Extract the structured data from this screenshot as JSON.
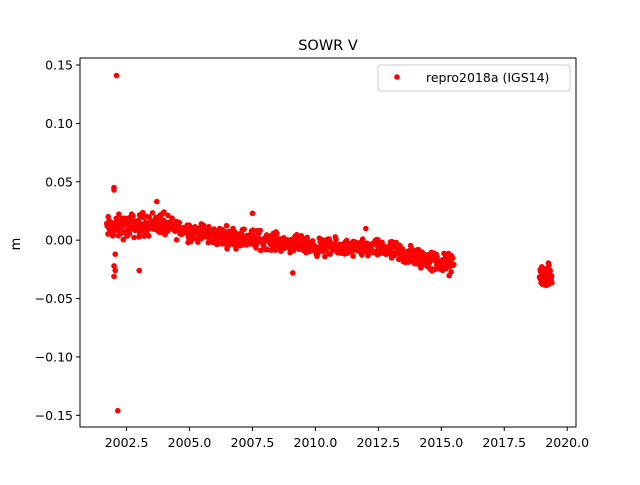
{
  "chart_data": {
    "type": "scatter",
    "title": "SOWR V",
    "xlabel": "",
    "ylabel": "m",
    "xlim": [
      2000.65,
      2020.35
    ],
    "ylim": [
      -0.16,
      0.156
    ],
    "x_ticks": [
      2002.5,
      2005.0,
      2007.5,
      2010.0,
      2012.5,
      2015.0,
      2017.5,
      2020.0
    ],
    "x_tick_labels": [
      "2002.5",
      "2005.0",
      "2007.5",
      "2010.0",
      "2012.5",
      "2015.0",
      "2017.5",
      "2020.0"
    ],
    "y_ticks": [
      0.15,
      0.1,
      0.05,
      0.0,
      -0.05,
      -0.1,
      -0.15
    ],
    "y_tick_labels": [
      "0.15",
      "0.10",
      "0.05",
      "0.00",
      "−0.05",
      "−0.10",
      "−0.15"
    ],
    "grid": false,
    "legend_position": "top-right",
    "series": [
      {
        "name": "repro2018a (IGS14)",
        "color": "#ff0000",
        "marker": "circle",
        "trend_segments": [
          {
            "x_start": 2001.7,
            "x_end": 2003.0,
            "y_start": 0.01,
            "y_end": 0.013,
            "spread": 0.011,
            "per_year": 60
          },
          {
            "x_start": 2003.0,
            "x_end": 2004.0,
            "y_start": 0.013,
            "y_end": 0.015,
            "spread": 0.011,
            "per_year": 60
          },
          {
            "x_start": 2004.0,
            "x_end": 2006.0,
            "y_start": 0.012,
            "y_end": 0.004,
            "spread": 0.009,
            "per_year": 60
          },
          {
            "x_start": 2006.0,
            "x_end": 2008.0,
            "y_start": 0.004,
            "y_end": 0.0,
            "spread": 0.009,
            "per_year": 60
          },
          {
            "x_start": 2008.0,
            "x_end": 2010.0,
            "y_start": 0.0,
            "y_end": -0.006,
            "spread": 0.008,
            "per_year": 60
          },
          {
            "x_start": 2010.0,
            "x_end": 2013.0,
            "y_start": -0.006,
            "y_end": -0.008,
            "spread": 0.008,
            "per_year": 60
          },
          {
            "x_start": 2013.0,
            "x_end": 2015.5,
            "y_start": -0.01,
            "y_end": -0.022,
            "spread": 0.01,
            "per_year": 60
          },
          {
            "x_start": 2018.9,
            "x_end": 2019.4,
            "y_start": -0.03,
            "y_end": -0.032,
            "spread": 0.01,
            "per_year": 120
          }
        ],
        "outliers": [
          {
            "x": 2002.1,
            "y": 0.141
          },
          {
            "x": 2002.0,
            "y": 0.045
          },
          {
            "x": 2002.0,
            "y": 0.043
          },
          {
            "x": 2002.05,
            "y": -0.012
          },
          {
            "x": 2002.0,
            "y": -0.022
          },
          {
            "x": 2002.05,
            "y": -0.026
          },
          {
            "x": 2002.0,
            "y": -0.031
          },
          {
            "x": 2003.0,
            "y": -0.026
          },
          {
            "x": 2002.15,
            "y": -0.146
          },
          {
            "x": 2009.1,
            "y": -0.028
          },
          {
            "x": 2007.5,
            "y": 0.023
          },
          {
            "x": 2003.7,
            "y": 0.033
          },
          {
            "x": 2012.0,
            "y": 0.01
          }
        ]
      }
    ]
  }
}
